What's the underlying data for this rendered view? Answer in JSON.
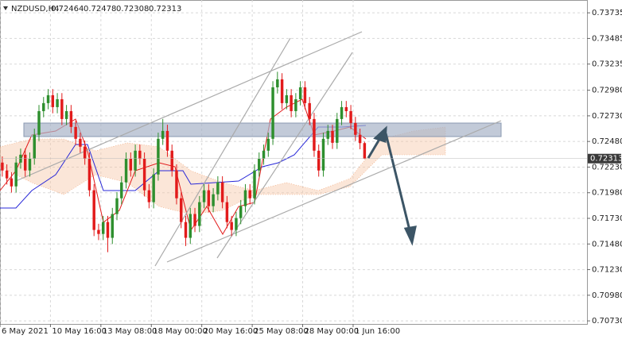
{
  "chart_data": {
    "type": "candlestick",
    "title": "NZDUSD,H4",
    "up_color": "#2e8f2e",
    "down_color": "#e21b1b",
    "grid": true,
    "xlim": [
      0,
      128
    ],
    "xticks": [
      {
        "value": 0,
        "label": "6 May 2021"
      },
      {
        "value": 11,
        "label": "10 May 16:00"
      },
      {
        "value": 22,
        "label": "13 May 08:00"
      },
      {
        "value": 33,
        "label": "18 May 00:00"
      },
      {
        "value": 44,
        "label": "20 May 16:00"
      },
      {
        "value": 55,
        "label": "25 May 08:00"
      },
      {
        "value": 66,
        "label": "28 May 00:00"
      },
      {
        "value": 77,
        "label": "1 Jun 16:00"
      }
    ],
    "ylim": [
      0.707,
      0.7386
    ],
    "yticks": [
      0.73735,
      0.73485,
      0.73235,
      {
        "value": 0.7298,
        "label": "0.72980"
      },
      {
        "value": 0.7273,
        "label": "0.72730"
      },
      {
        "value": 0.7248,
        "label": "0.72480"
      },
      {
        "value": 0.7223,
        "label": "0.72230"
      },
      {
        "value": 0.7198,
        "label": "0.71980"
      },
      {
        "value": 0.7173,
        "label": "0.71730"
      },
      {
        "value": 0.7148,
        "label": "0.71480"
      },
      {
        "value": 0.7123,
        "label": "0.71230"
      },
      {
        "value": 0.7098,
        "label": "0.70980"
      },
      {
        "value": 0.7073,
        "label": "0.70730"
      }
    ],
    "open": [
      0.72274,
      0.72197,
      0.7212,
      0.72042,
      0.72274,
      0.72351,
      0.72197,
      0.72313,
      0.72545,
      0.72776,
      0.72854,
      0.72931,
      0.72815,
      0.72892,
      0.72699,
      0.72776,
      0.72622,
      0.72506,
      0.72429,
      0.72313,
      0.72004,
      0.71617,
      0.71578,
      0.71694,
      0.7154,
      0.71772,
      0.71926,
      0.72081,
      0.72313,
      0.72197,
      0.7239,
      0.72313,
      0.72004,
      0.71888,
      0.72158,
      0.72506,
      0.72583,
      0.7239,
      0.72197,
      0.71926,
      0.71694,
      0.7154,
      0.71772,
      0.71656,
      0.71888,
      0.72004,
      0.71849,
      0.71965,
      0.72081,
      0.71888,
      0.71694,
      0.71617,
      0.71733,
      0.71849,
      0.72004,
      0.71926,
      0.72197,
      0.72313,
      0.7239,
      0.72506,
      0.73008,
      0.73086,
      0.72854,
      0.72931,
      0.72776,
      0.72892,
      0.73008,
      0.72854,
      0.72699,
      0.7239,
      0.72197,
      0.72506,
      0.72583,
      0.72467,
      0.72699,
      0.72815,
      0.72776,
      0.7266,
      0.72545,
      0.72464
    ],
    "high": [
      0.72334,
      0.72257,
      0.7218,
      0.72334,
      0.72411,
      0.72411,
      0.72373,
      0.72605,
      0.72836,
      0.72914,
      0.72991,
      0.72991,
      0.72952,
      0.72952,
      0.72836,
      0.72836,
      0.72682,
      0.72566,
      0.72489,
      0.72373,
      0.72064,
      0.71677,
      0.71754,
      0.71754,
      0.71832,
      0.71986,
      0.72141,
      0.72373,
      0.72373,
      0.7245,
      0.7245,
      0.72373,
      0.72064,
      0.72218,
      0.72566,
      0.727,
      0.72643,
      0.7245,
      0.72257,
      0.71986,
      0.71754,
      0.71832,
      0.71832,
      0.71948,
      0.72064,
      0.72064,
      0.72025,
      0.72141,
      0.72141,
      0.71948,
      0.71754,
      0.71793,
      0.71909,
      0.72064,
      0.72064,
      0.72257,
      0.72373,
      0.7245,
      0.72566,
      0.73068,
      0.7316,
      0.73146,
      0.72991,
      0.72991,
      0.72952,
      0.73068,
      0.73068,
      0.72914,
      0.72759,
      0.7245,
      0.72566,
      0.72643,
      0.72643,
      0.72759,
      0.72875,
      0.72875,
      0.72836,
      0.7272,
      0.72605,
      0.72478
    ],
    "low": [
      0.72137,
      0.7206,
      0.71982,
      0.71982,
      0.72214,
      0.72137,
      0.72137,
      0.72253,
      0.72485,
      0.72716,
      0.72794,
      0.72755,
      0.72755,
      0.72639,
      0.72639,
      0.72562,
      0.72446,
      0.72369,
      0.72253,
      0.71944,
      0.71557,
      0.71518,
      0.71518,
      0.714,
      0.7148,
      0.71712,
      0.71866,
      0.72021,
      0.72137,
      0.72137,
      0.72253,
      0.71944,
      0.71828,
      0.71828,
      0.72098,
      0.72446,
      0.7233,
      0.72137,
      0.71866,
      0.71634,
      0.7146,
      0.7148,
      0.71596,
      0.71596,
      0.71828,
      0.71789,
      0.71789,
      0.71905,
      0.71828,
      0.71634,
      0.71557,
      0.71557,
      0.71673,
      0.71789,
      0.71866,
      0.71866,
      0.72137,
      0.72253,
      0.7233,
      0.72446,
      0.72948,
      0.72794,
      0.72794,
      0.72716,
      0.72716,
      0.72832,
      0.72794,
      0.72639,
      0.7233,
      0.72137,
      0.72137,
      0.72446,
      0.72407,
      0.72407,
      0.72639,
      0.72716,
      0.726,
      0.72485,
      0.72404,
      0.72308
    ],
    "close": [
      0.72197,
      0.7212,
      0.72042,
      0.72274,
      0.72351,
      0.72197,
      0.72313,
      0.72545,
      0.72776,
      0.72854,
      0.72931,
      0.72815,
      0.72892,
      0.72699,
      0.72776,
      0.72622,
      0.72506,
      0.72429,
      0.72313,
      0.72004,
      0.71617,
      0.71578,
      0.71694,
      0.7154,
      0.71772,
      0.71926,
      0.72081,
      0.72313,
      0.72197,
      0.7239,
      0.72313,
      0.72004,
      0.71888,
      0.72158,
      0.72506,
      0.72583,
      0.7239,
      0.72197,
      0.71926,
      0.71694,
      0.7154,
      0.71772,
      0.71656,
      0.71888,
      0.72004,
      0.71849,
      0.71965,
      0.72081,
      0.71888,
      0.71694,
      0.71617,
      0.71733,
      0.71849,
      0.72004,
      0.71926,
      0.72197,
      0.72313,
      0.7239,
      0.72506,
      0.73008,
      0.73086,
      0.72854,
      0.72931,
      0.72776,
      0.72892,
      0.73008,
      0.72854,
      0.72699,
      0.7239,
      0.72197,
      0.72506,
      0.72583,
      0.72467,
      0.72699,
      0.72815,
      0.72776,
      0.7266,
      0.72545,
      0.72464,
      0.72313
    ]
  }
}
